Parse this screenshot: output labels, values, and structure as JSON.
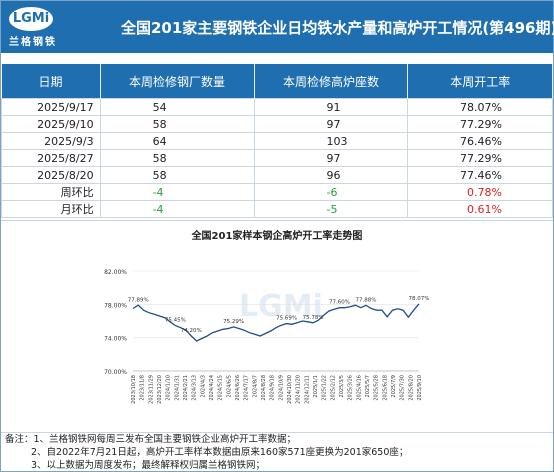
{
  "header": {
    "logo_mark": "LGMi",
    "logo_text": "兰格钢铁",
    "title": "全国201家主要钢铁企业日均铁水产量和高炉开工情况(第496期)"
  },
  "table": {
    "columns": [
      "日期",
      "本周检修钢厂数量",
      "本周检修高炉座数",
      "本周开工率"
    ],
    "rows": [
      [
        "2025/9/17",
        "54",
        "91",
        "78.07%"
      ],
      [
        "2025/9/10",
        "58",
        "97",
        "77.29%"
      ],
      [
        "2025/9/3",
        "64",
        "103",
        "76.46%"
      ],
      [
        "2025/8/27",
        "58",
        "97",
        "77.29%"
      ],
      [
        "2025/8/20",
        "58",
        "96",
        "77.46%"
      ]
    ],
    "compare": [
      [
        "周环比",
        "-4",
        "-6",
        "0.78%"
      ],
      [
        "月环比",
        "-4",
        "-5",
        "0.61%"
      ]
    ]
  },
  "colors": {
    "header_bg": "#1f6fb0",
    "line": "#1f4e8c",
    "down": "#2a9d3a",
    "up": "#e02020"
  },
  "chart_data": {
    "type": "line",
    "title": "全国201家样本钢企高炉开工率走势图",
    "ylim": [
      70,
      82
    ],
    "yticks": [
      "70.00%",
      "74.00%",
      "78.00%",
      "82.00%"
    ],
    "xticks": [
      "2023/10/18",
      "2023/11/8",
      "2023/11/29",
      "2023/12/20",
      "2024/1/10",
      "2024/1/31",
      "2024/2/21",
      "2024/3/13",
      "2024/4/3",
      "2024/4/24",
      "2024/5/15",
      "2024/6/5",
      "2024/6/26",
      "2024/7/17",
      "2024/8/7",
      "2024/8/28",
      "2024/9/18",
      "2024/10/9",
      "2024/10/30",
      "2024/11/20",
      "2024/12/11",
      "2025/1/1",
      "2025/1/22",
      "2025/2/12",
      "2025/3/5",
      "2025/3/26",
      "2025/4/16",
      "2025/5/7",
      "2025/5/28",
      "2025/6/18",
      "2025/7/9",
      "2025/7/30",
      "2025/8/20",
      "2025/9/10"
    ],
    "series": [
      {
        "values": [
          77.5,
          77.89,
          77.3,
          77.0,
          76.8,
          76.6,
          76.4,
          75.9,
          75.45,
          75.2,
          74.9,
          74.2,
          73.6,
          73.9,
          74.2,
          74.6,
          74.8,
          75.0,
          75.1,
          75.29,
          75.1,
          74.9,
          74.6,
          74.4,
          74.2,
          74.5,
          74.8,
          75.2,
          75.5,
          75.69,
          75.6,
          75.8,
          76.0,
          75.9,
          75.78,
          76.1,
          76.7,
          77.2,
          77.4,
          77.6,
          77.6,
          77.7,
          77.9,
          77.6,
          77.88,
          77.5,
          77.3,
          77.3,
          76.5,
          77.29,
          77.46,
          77.29,
          76.46,
          77.29,
          78.07
        ]
      }
    ],
    "annotations": [
      {
        "text": "77.89%",
        "index": 1
      },
      {
        "text": "75.45%",
        "index": 8
      },
      {
        "text": "74.20%",
        "index": 11
      },
      {
        "text": "75.29%",
        "index": 19
      },
      {
        "text": "75.69%",
        "index": 29
      },
      {
        "text": "75.78%",
        "index": 34
      },
      {
        "text": "77.60%",
        "index": 39
      },
      {
        "text": "77.88%",
        "index": 44
      },
      {
        "text": "78.07%",
        "index": 54
      }
    ]
  },
  "notes": [
    "备注：1、兰格钢铁网每周三发布全国主要钢铁企业高炉开工率数据；",
    "2、自2022年7月21日起，高炉开工率样本数据由原来160家571座更换为201家650座；",
    "3、以上数据为周度发布；最终解释权归属兰格钢铁网；"
  ]
}
